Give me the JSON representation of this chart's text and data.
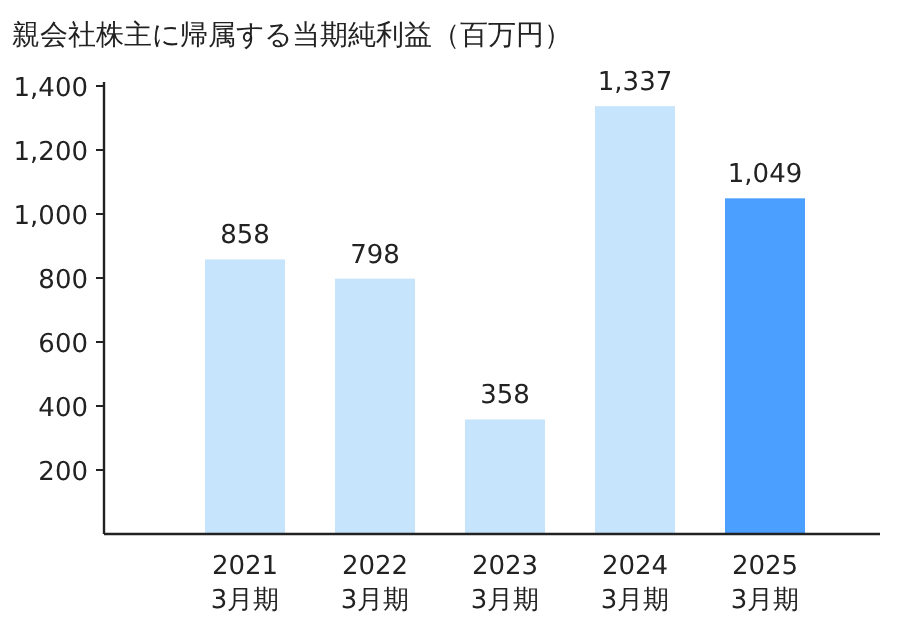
{
  "chart_data": {
    "type": "bar",
    "title": "親会社株主に帰属する当期純利益（百万円）",
    "categories": [
      "2021\n3月期",
      "2022\n3月期",
      "2023\n3月期",
      "2024\n3月期",
      "2025\n3月期"
    ],
    "values": [
      858,
      798,
      358,
      1337,
      1049
    ],
    "colors": [
      "#c6e4fc",
      "#c6e4fc",
      "#c6e4fc",
      "#c6e4fc",
      "#4a9fff"
    ],
    "value_labels": [
      "858",
      "798",
      "358",
      "1,337",
      "1,049"
    ],
    "ylim": [
      0,
      1400
    ],
    "yticks": [
      {
        "value": 200,
        "label": "200"
      },
      {
        "value": 400,
        "label": "400"
      },
      {
        "value": 600,
        "label": "600"
      },
      {
        "value": 800,
        "label": "800"
      },
      {
        "value": 1000,
        "label": "1,000"
      },
      {
        "value": 1200,
        "label": "1,200"
      },
      {
        "value": 1400,
        "label": "1,400"
      }
    ],
    "grid": false
  }
}
